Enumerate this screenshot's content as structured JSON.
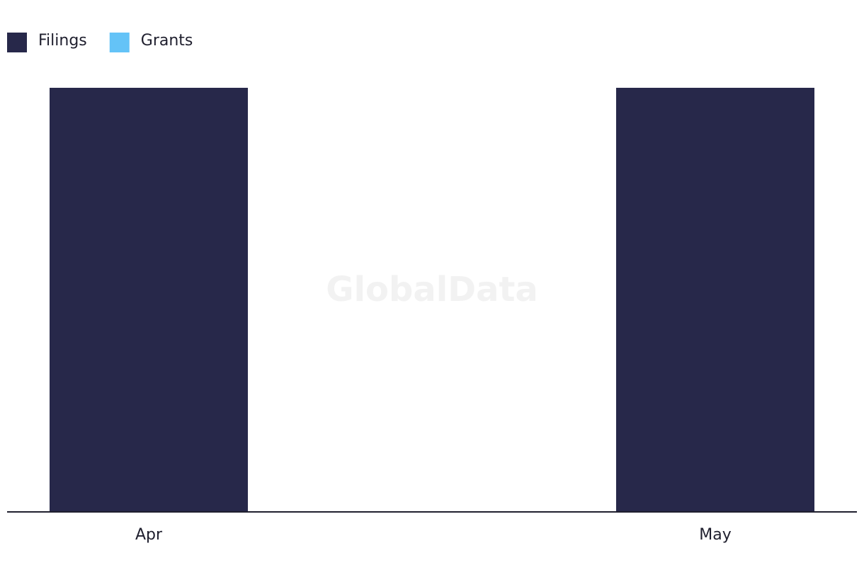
{
  "chart_data": {
    "type": "bar",
    "watermark": "GlobalData",
    "categories": [
      "Apr",
      "May"
    ],
    "series": [
      {
        "name": "Filings",
        "color": "#27284a",
        "values": [
          1,
          1
        ]
      },
      {
        "name": "Grants",
        "color": "#64c3f7",
        "values": [
          0,
          0
        ]
      }
    ],
    "ylim": [
      0,
      1
    ],
    "legend": "top-left"
  }
}
